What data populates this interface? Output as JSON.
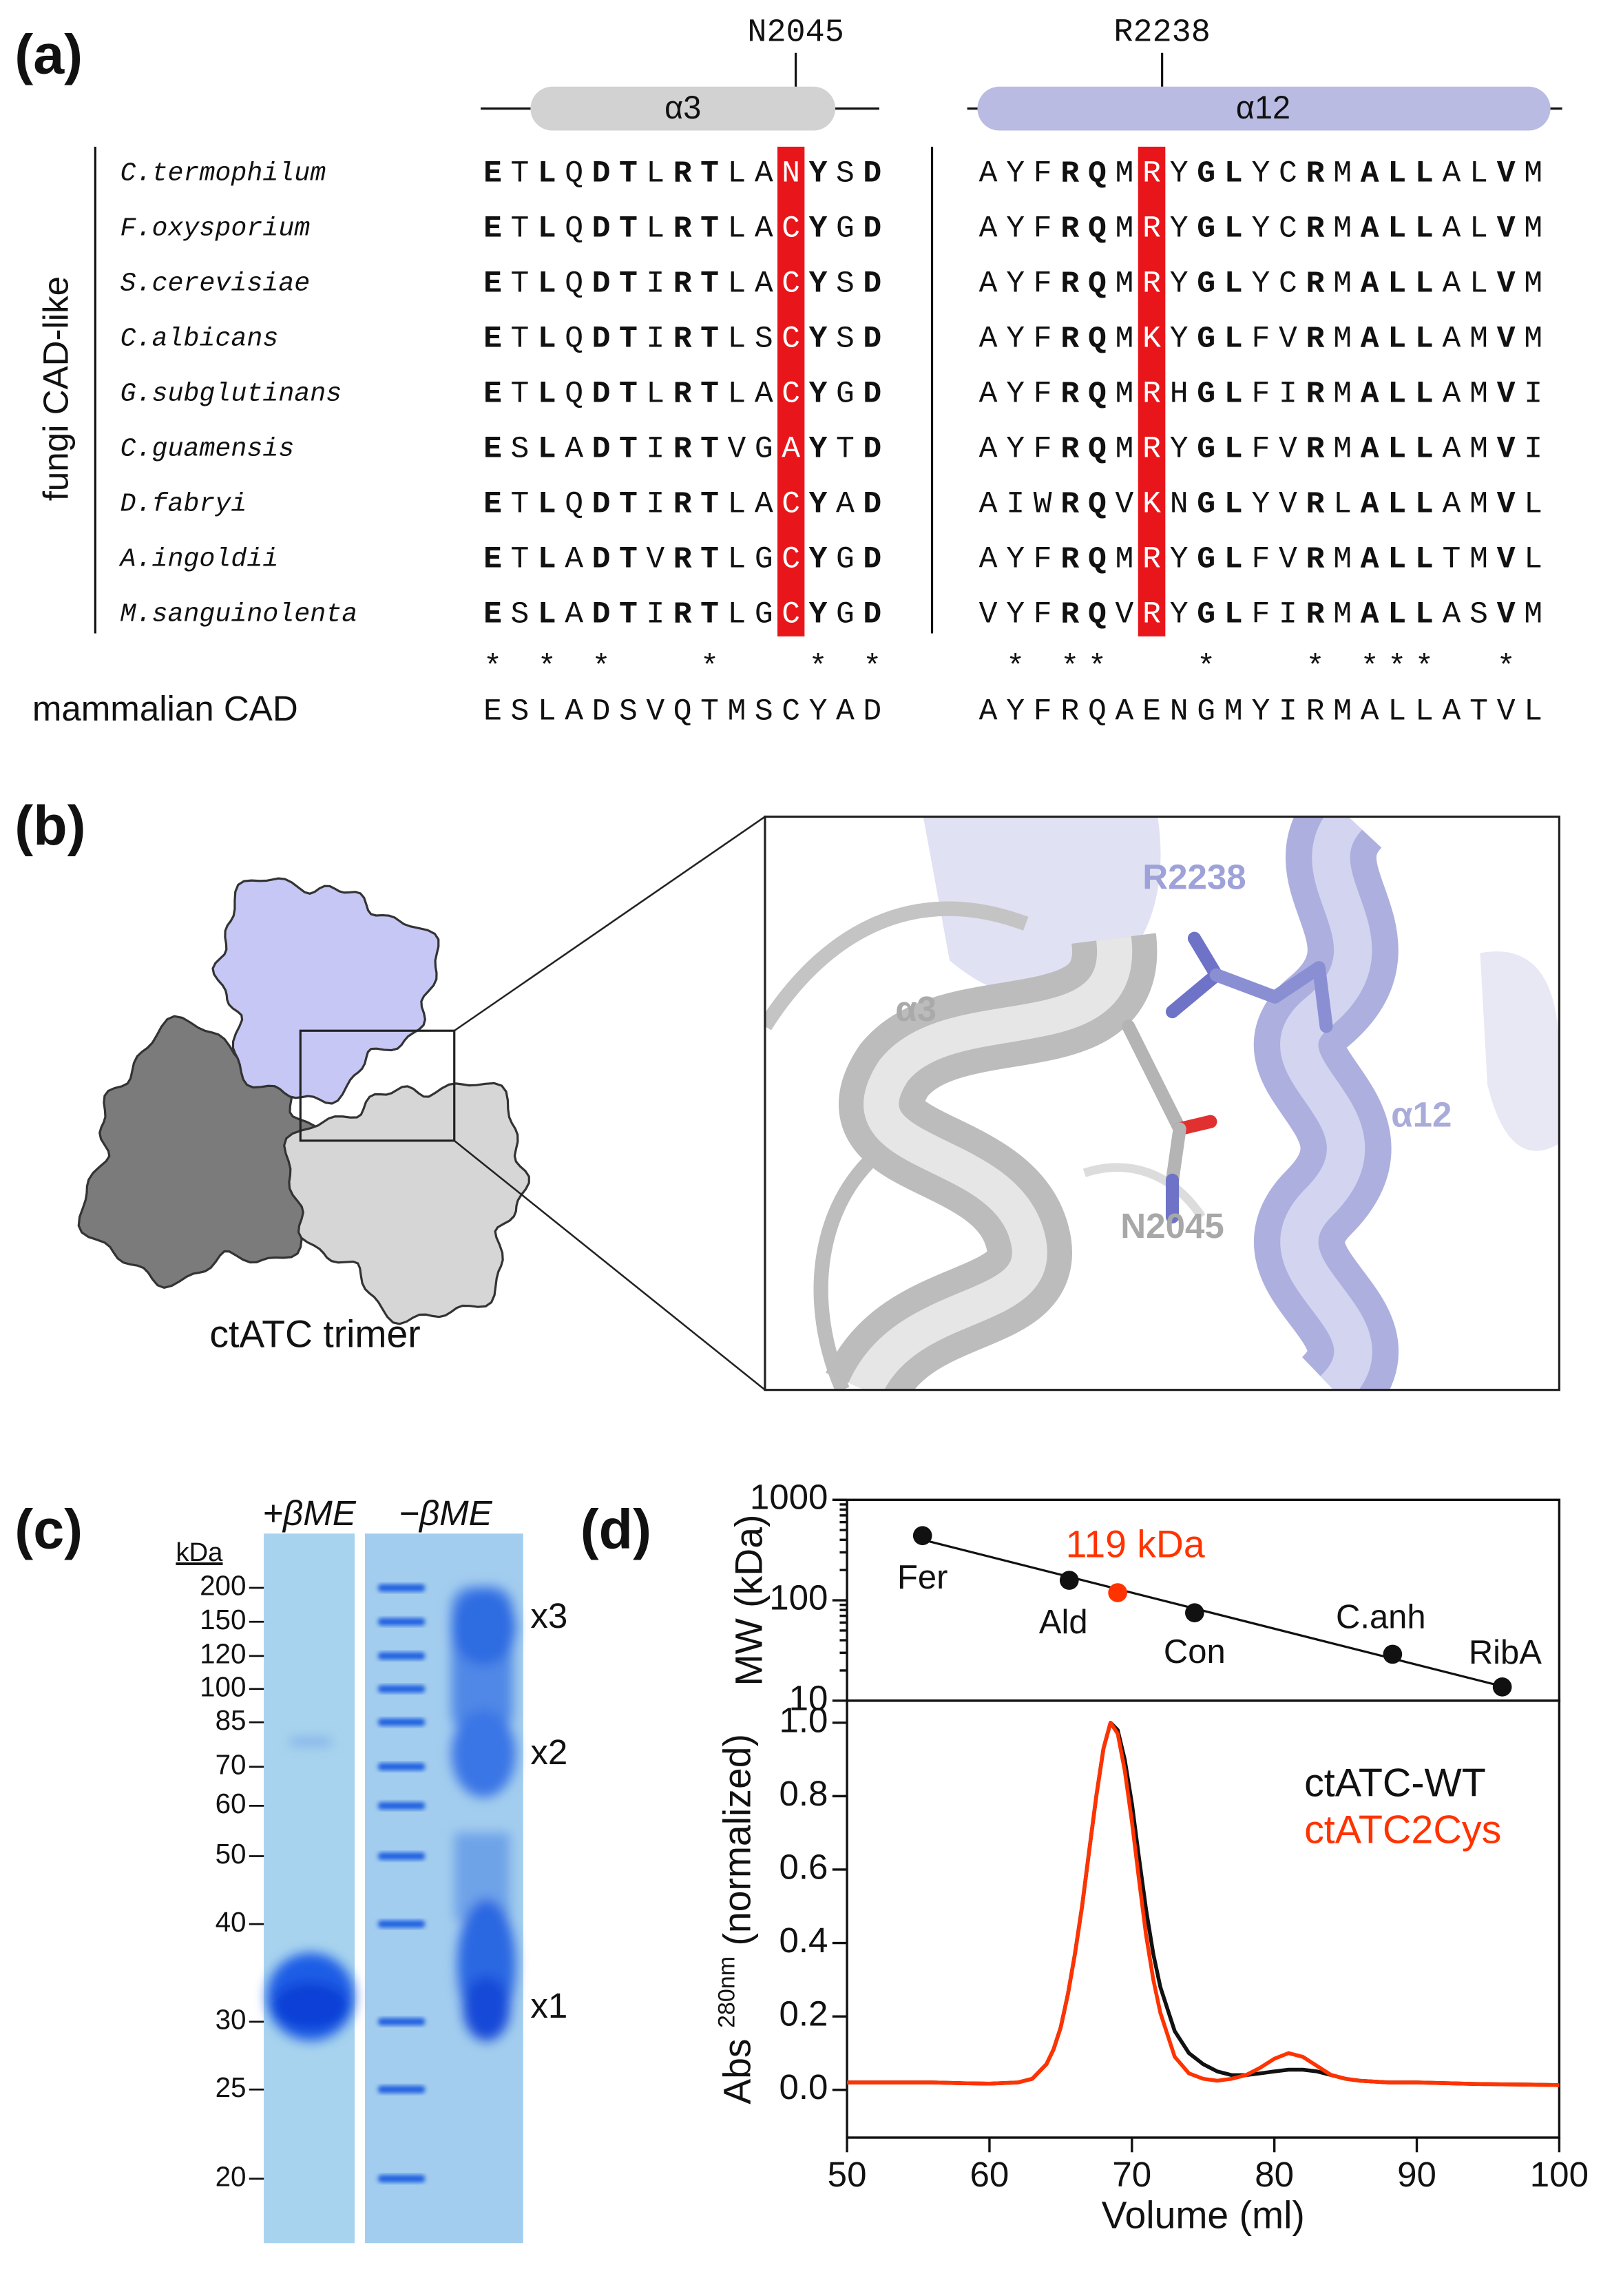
{
  "panel_labels": [
    "(a)",
    "(b)",
    "(c)",
    "(d)"
  ],
  "alignment": {
    "group_label": "fungi CAD-like",
    "blocks": [
      {
        "helix": "α3",
        "residue": "N2045",
        "highlight": 11,
        "stars": "* * *   *   * *"
      },
      {
        "helix": "α12",
        "residue": "R2238",
        "highlight": 6,
        "stars": " * **   *   * ***  * "
      }
    ],
    "rows": [
      {
        "species": "C.termophilum",
        "seqs": [
          "ETLQDTLRTLANYSD",
          "AYFRQMRYGLYCRMALLALVM"
        ]
      },
      {
        "species": "F.oxysporium",
        "seqs": [
          "ETLQDTLRTLACYGD",
          "AYFRQMRYGLYCRMALLALVM"
        ]
      },
      {
        "species": "S.cerevisiae",
        "seqs": [
          "ETLQDTIRTLACYSD",
          "AYFRQMRYGLYCRMALLALVM"
        ]
      },
      {
        "species": "C.albicans",
        "seqs": [
          "ETLQDTIRTLSCYSD",
          "AYFRQMKYGLFVRMALLAMVM"
        ]
      },
      {
        "species": "G.subglutinans",
        "seqs": [
          "ETLQDTLRTLACYGD",
          "AYFRQMRHGLFIRMALLAMVI"
        ]
      },
      {
        "species": "C.guamensis",
        "seqs": [
          "ESLADTIRTVGAYTD",
          "AYFRQMRYGLFVRMALLAMVI"
        ]
      },
      {
        "species": "D.fabryi",
        "seqs": [
          "ETLQDTIRTLACYAD",
          "AIWRQVKNGLYVRLALLAMVL"
        ]
      },
      {
        "species": "A.ingoldii",
        "seqs": [
          "ETLADTVRTLGCYGD",
          "AYFRQMRYGLFVRMALLTMVL"
        ]
      },
      {
        "species": "M.sanguinolenta",
        "seqs": [
          "ESLADTIRTLGCYGD",
          "VYFRQVRYGLFIRMALLASVM"
        ]
      }
    ],
    "reference": {
      "label": "mammalian CAD",
      "seqs": [
        "ESLADSVQTMSCYAD",
        "AYFRQAENGMYIRMALLATVL"
      ]
    }
  },
  "structure": {
    "caption": "ctATC trimer",
    "labels": [
      "R2238",
      "α3",
      "α12",
      "N2045"
    ]
  },
  "gel": {
    "lanes": [
      "+βME",
      "−βME"
    ],
    "unit": "kDa",
    "markers": [
      200,
      150,
      120,
      100,
      85,
      70,
      60,
      50,
      40,
      30,
      25,
      20
    ],
    "bands": [
      "x3",
      "x2",
      "x1"
    ]
  },
  "chart_data": [
    {
      "type": "scatter",
      "ylabel": "MW (kDa)",
      "log_y": true,
      "xlim": [
        50,
        100
      ],
      "ylim": [
        10,
        1000
      ],
      "yticks": [
        10,
        100,
        1000
      ],
      "fit_line": true,
      "color": "#111111",
      "x": [
        55.3,
        65.6,
        74.4,
        88.3,
        96.0
      ],
      "values": [
        440,
        158,
        75,
        29,
        13.7
      ],
      "point_labels": [
        "Fer",
        "Ald",
        "Con",
        "C.anh",
        "RibA"
      ],
      "highlight": {
        "x": 69.0,
        "value": 119,
        "label": "119 kDa",
        "color": "#ff3300"
      }
    },
    {
      "type": "line",
      "xlabel": "Volume (ml)",
      "ylabel": {
        "text": "Abs",
        "sup": "280nm",
        "rest": "(normalized)"
      },
      "xlim": [
        50,
        100
      ],
      "ylim": [
        -0.13,
        1.06
      ],
      "xticks": [
        50,
        60,
        70,
        80,
        90,
        100
      ],
      "yticks": [
        {
          "value": 0,
          "label": "0.0"
        },
        0.2,
        0.4,
        0.6,
        0.8,
        {
          "value": 1,
          "label": "1.0"
        }
      ],
      "x": [
        50,
        52,
        54,
        56,
        58,
        60,
        62,
        63,
        64,
        64.5,
        65,
        65.5,
        66,
        66.5,
        67,
        67.5,
        68,
        68.5,
        69,
        69.5,
        70,
        70.5,
        71,
        71.5,
        72,
        73,
        74,
        75,
        76,
        77,
        78,
        79,
        80,
        81,
        82,
        83,
        84,
        85,
        86,
        88,
        90,
        92,
        94,
        96,
        98,
        100
      ],
      "series": [
        {
          "name": "ctATC-WT",
          "color": "#111111",
          "values": [
            0.02,
            0.02,
            0.02,
            0.02,
            0.018,
            0.017,
            0.02,
            0.03,
            0.07,
            0.11,
            0.17,
            0.26,
            0.37,
            0.5,
            0.65,
            0.8,
            0.93,
            1.0,
            0.98,
            0.9,
            0.78,
            0.63,
            0.49,
            0.37,
            0.28,
            0.16,
            0.1,
            0.07,
            0.05,
            0.04,
            0.04,
            0.045,
            0.05,
            0.055,
            0.055,
            0.05,
            0.04,
            0.03,
            0.025,
            0.02,
            0.02,
            0.018,
            0.016,
            0.015,
            0.014,
            0.013
          ]
        },
        {
          "name": "ctATC2Cys",
          "color": "#ff3300",
          "values": [
            0.02,
            0.02,
            0.02,
            0.02,
            0.018,
            0.017,
            0.02,
            0.03,
            0.07,
            0.11,
            0.17,
            0.26,
            0.37,
            0.5,
            0.65,
            0.8,
            0.93,
            1.0,
            0.97,
            0.87,
            0.73,
            0.57,
            0.42,
            0.3,
            0.21,
            0.09,
            0.045,
            0.03,
            0.025,
            0.03,
            0.04,
            0.06,
            0.085,
            0.1,
            0.09,
            0.065,
            0.04,
            0.03,
            0.025,
            0.02,
            0.02,
            0.018,
            0.016,
            0.015,
            0.014,
            0.013
          ]
        }
      ]
    }
  ]
}
